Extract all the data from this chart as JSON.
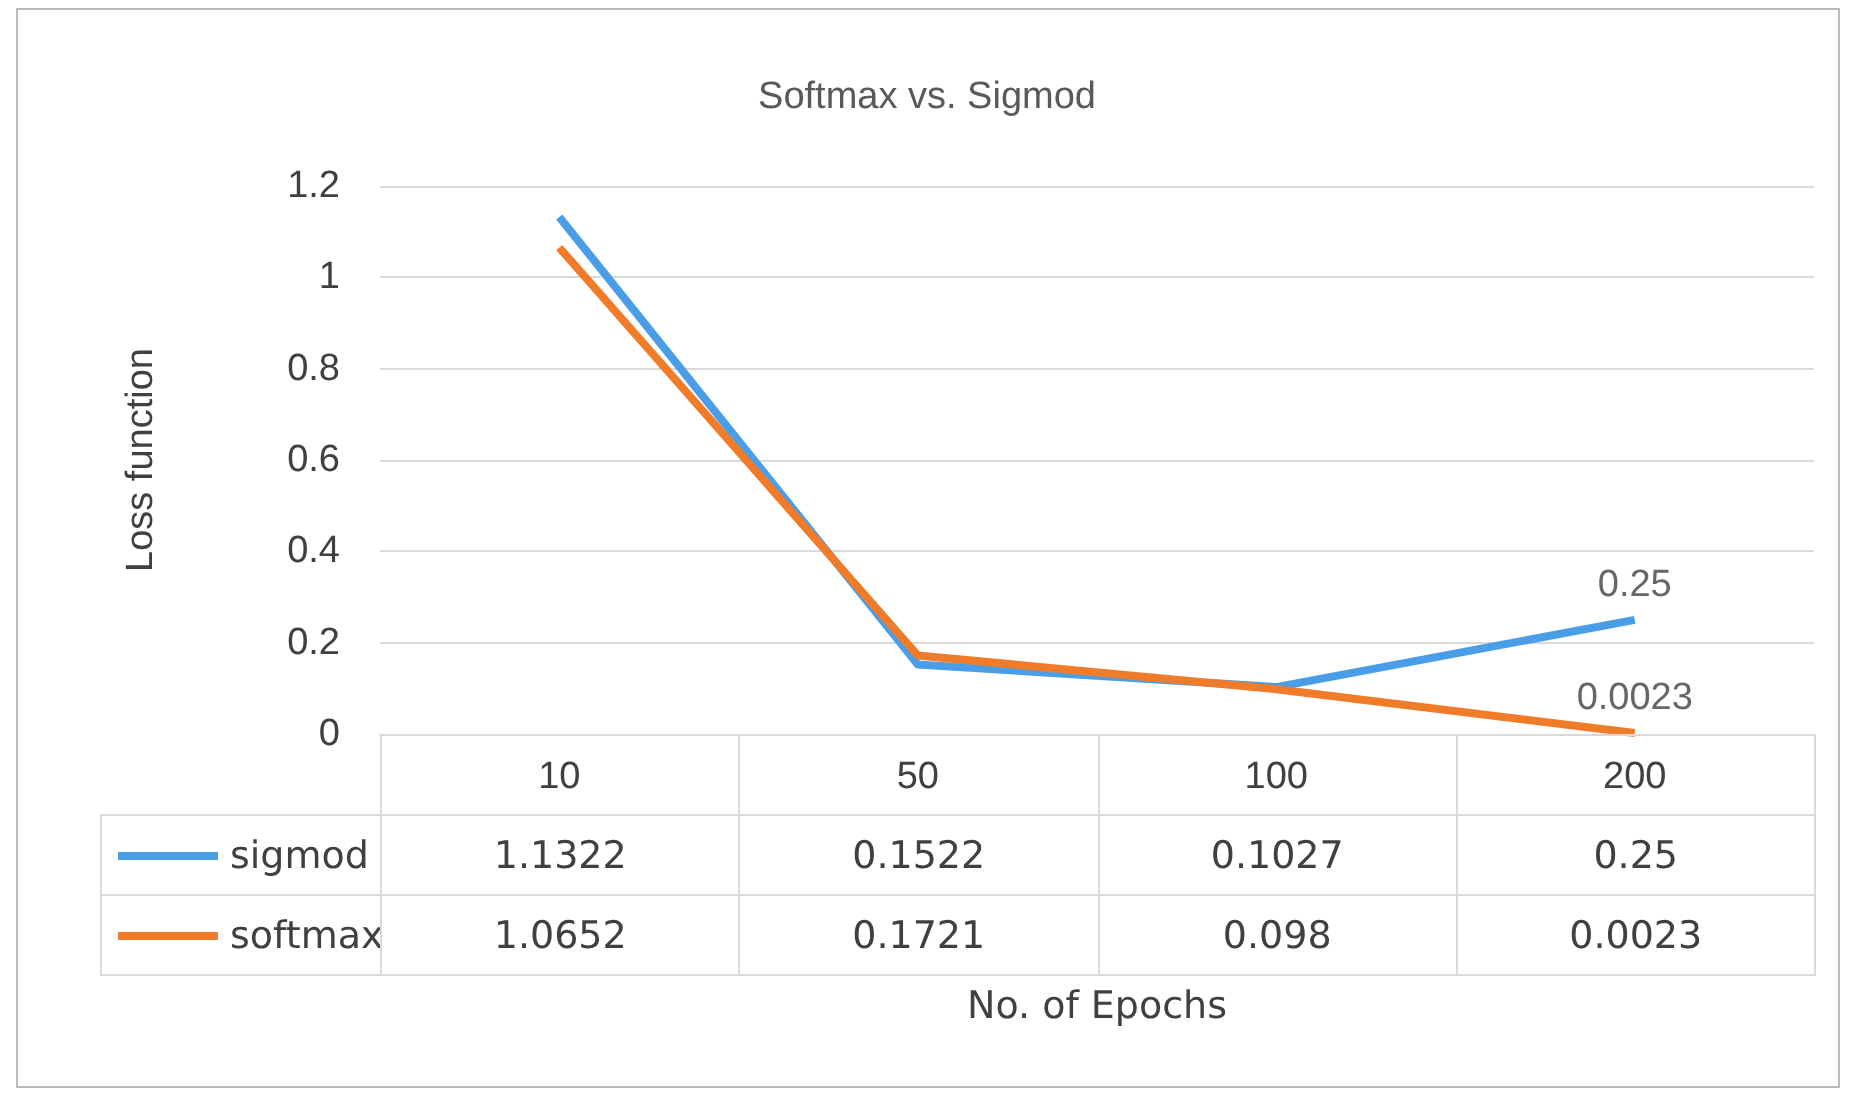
{
  "chart_data": {
    "type": "line",
    "title": "Softmax vs. Sigmod",
    "xlabel": "No. of Epochs",
    "ylabel": "Loss function",
    "categories": [
      "10",
      "50",
      "100",
      "200"
    ],
    "series": [
      {
        "name": "sigmod",
        "color": "#4a9ee8",
        "values": [
          1.1322,
          0.1522,
          0.1027,
          0.25
        ],
        "value_labels": [
          "1.1322",
          "0.1522",
          "0.1027",
          "0.25"
        ]
      },
      {
        "name": "softmax",
        "color": "#f07c2a",
        "values": [
          1.0652,
          0.1721,
          0.098,
          0.0023
        ],
        "value_labels": [
          "1.0652",
          "0.1721",
          "0.098",
          "0.0023"
        ]
      }
    ],
    "annotations": [
      {
        "text": "0.25",
        "x": "200",
        "y": 0.25
      },
      {
        "text": "0.0023",
        "x": "200",
        "y": 0.0023
      }
    ],
    "ylim": [
      0,
      1.2
    ],
    "yticks": [
      0,
      0.2,
      0.4,
      0.6,
      0.8,
      1,
      1.2
    ],
    "grid": "y",
    "legend": "bottom"
  }
}
